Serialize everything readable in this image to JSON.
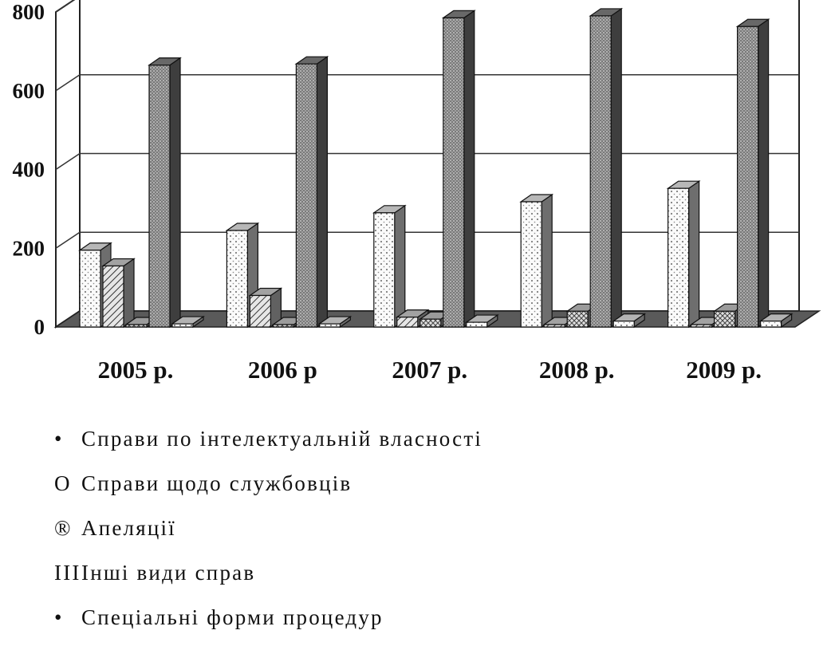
{
  "chart_data": {
    "type": "bar",
    "categories": [
      "2005 р.",
      "2006 р",
      "2007 р.",
      "2008 р.",
      "2009 р."
    ],
    "yticks": [
      "0",
      "200",
      "400",
      "600",
      "800"
    ],
    "ylim": [
      0,
      800
    ],
    "grid": true,
    "legend_position": "bottom",
    "series": [
      {
        "name": "Справи по інтелектуальній власності",
        "values": [
          195,
          245,
          290,
          318,
          352
        ],
        "color": "#f4f4f4",
        "pattern": "dots"
      },
      {
        "name": "Справи щодо службовців",
        "values": [
          155,
          80,
          25,
          5,
          5
        ],
        "color": "#d8d8d8",
        "pattern": "diagonal"
      },
      {
        "name": "Апеляції",
        "values": [
          5,
          5,
          20,
          40,
          40
        ],
        "color": "#cfcfcf",
        "pattern": "crosshatch"
      },
      {
        "name": "Інші види справ",
        "values": [
          665,
          668,
          785,
          790,
          763
        ],
        "color": "#8a8a8a",
        "pattern": "dense"
      },
      {
        "name": "Спеціальні форми процедур",
        "values": [
          8,
          8,
          12,
          15,
          15
        ],
        "color": "#eeeeee",
        "pattern": "dots"
      }
    ]
  },
  "legend_markers": [
    "•",
    "О",
    "®",
    "ІІІ",
    "•"
  ]
}
